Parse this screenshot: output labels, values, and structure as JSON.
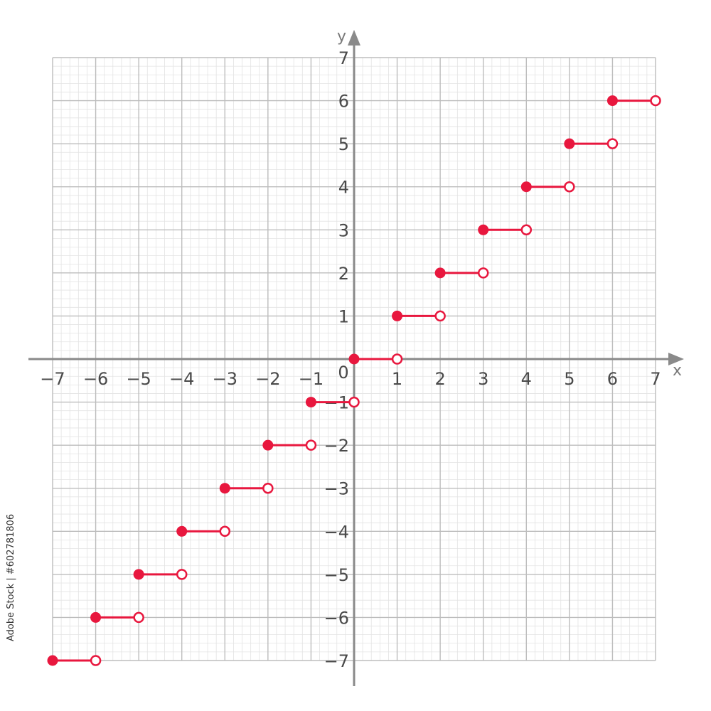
{
  "chart_data": {
    "type": "step",
    "title": "",
    "xlabel": "x",
    "ylabel": "y",
    "xlim": [
      -7,
      7
    ],
    "ylim": [
      -7,
      7
    ],
    "x_ticks": [
      "-7",
      "-6",
      "-5",
      "-4",
      "-3",
      "-2",
      "-1",
      "1",
      "2",
      "3",
      "4",
      "5",
      "6",
      "7"
    ],
    "y_ticks": [
      "7",
      "6",
      "5",
      "4",
      "3",
      "2",
      "1",
      "-1",
      "-2",
      "-3",
      "-4",
      "-5",
      "-6",
      "-7"
    ],
    "origin_label": "0",
    "grid": true,
    "steps": [
      {
        "x_start": -7,
        "x_end": -6,
        "y": -7
      },
      {
        "x_start": -6,
        "x_end": -5,
        "y": -6
      },
      {
        "x_start": -5,
        "x_end": -4,
        "y": -5
      },
      {
        "x_start": -4,
        "x_end": -3,
        "y": -4
      },
      {
        "x_start": -3,
        "x_end": -2,
        "y": -3
      },
      {
        "x_start": -2,
        "x_end": -1,
        "y": -2
      },
      {
        "x_start": -1,
        "x_end": 0,
        "y": -1
      },
      {
        "x_start": 0,
        "x_end": 1,
        "y": 0
      },
      {
        "x_start": 1,
        "x_end": 2,
        "y": 1
      },
      {
        "x_start": 2,
        "x_end": 3,
        "y": 2
      },
      {
        "x_start": 3,
        "x_end": 4,
        "y": 3
      },
      {
        "x_start": 4,
        "x_end": 5,
        "y": 4
      },
      {
        "x_start": 5,
        "x_end": 6,
        "y": 5
      },
      {
        "x_start": 6,
        "x_end": 7,
        "y": 6
      }
    ],
    "step_left_end": "closed",
    "step_right_end": "open",
    "colors": {
      "step": "#e8173e",
      "axis": "#8a8a8a",
      "grid_major": "#bdbdbd",
      "grid_minor": "#e3e3e3"
    }
  },
  "credit": "Adobe Stock | #602781806"
}
